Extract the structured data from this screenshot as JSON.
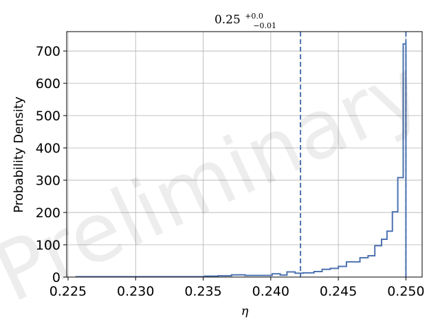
{
  "chart_data": {
    "type": "step-histogram",
    "title": {
      "base": "0.25",
      "sup": "+0.0",
      "sub": "−0.01"
    },
    "xlabel": "η",
    "ylabel": "Probability Density",
    "watermark": "Preliminary",
    "xlim": [
      0.2249,
      0.2512
    ],
    "ylim": [
      0,
      760
    ],
    "xticks": [
      0.225,
      0.23,
      0.235,
      0.24,
      0.245,
      0.25
    ],
    "xtick_labels": [
      "0.225",
      "0.230",
      "0.235",
      "0.240",
      "0.245",
      "0.250"
    ],
    "yticks": [
      0,
      100,
      200,
      300,
      400,
      500,
      600,
      700
    ],
    "ytick_labels": [
      "0",
      "100",
      "200",
      "300",
      "400",
      "500",
      "600",
      "700"
    ],
    "grid": true,
    "color": "#4c72b0",
    "bin_edges": [
      0.2256,
      0.2351,
      0.2361,
      0.2371,
      0.2381,
      0.2401,
      0.2407,
      0.2412,
      0.2418,
      0.2424,
      0.2432,
      0.2438,
      0.2444,
      0.245,
      0.2456,
      0.2466,
      0.2472,
      0.2477,
      0.2482,
      0.2486,
      0.249,
      0.2494,
      0.2498,
      0.25
    ],
    "density": [
      1,
      3,
      4,
      7,
      5,
      10,
      6,
      16,
      12,
      13,
      17,
      24,
      27,
      33,
      47,
      60,
      66,
      97,
      117,
      142,
      202,
      308,
      722
    ],
    "vlines": [
      {
        "x": 0.2422,
        "style": "dashed"
      },
      {
        "x": 0.25,
        "style": "dashed"
      }
    ]
  }
}
